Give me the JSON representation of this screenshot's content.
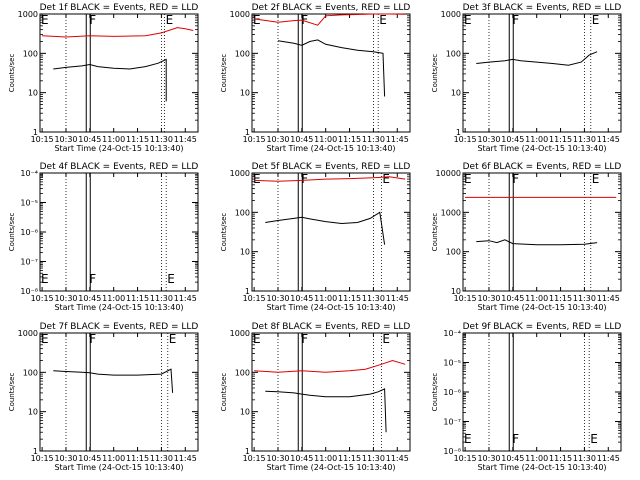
{
  "chart_data": [
    {
      "type": "line",
      "title": "Det 1f BLACK = Events, RED = LLD",
      "ylabel": "Counts/sec",
      "xlabel": "Start Time (24-Oct-15 10:13:40)",
      "x_tick_labels": [
        "10:15",
        "10:30",
        "10:45",
        "11:00",
        "11:15",
        "11:30",
        "11:45"
      ],
      "y_scale": "log",
      "ylim": [
        1,
        1000
      ],
      "y_tick_labels": [
        "1",
        "10",
        "100",
        "1000"
      ],
      "markers": {
        "F": "10:44",
        "E": "11:32"
      },
      "series": [
        {
          "color": "#000000",
          "points": [
            [
              "10:22",
              40
            ],
            [
              "10:30",
              44
            ],
            [
              "10:40",
              48
            ],
            [
              "10:45",
              52
            ],
            [
              "10:50",
              46
            ],
            [
              "11:00",
              42
            ],
            [
              "11:10",
              40
            ],
            [
              "11:20",
              46
            ],
            [
              "11:28",
              56
            ],
            [
              "11:33",
              70
            ],
            [
              "11:33",
              6
            ]
          ]
        },
        {
          "color": "#e00000",
          "points": [
            [
              "10:15",
              280
            ],
            [
              "10:30",
              260
            ],
            [
              "10:45",
              280
            ],
            [
              "11:00",
              270
            ],
            [
              "11:20",
              280
            ],
            [
              "11:30",
              330
            ],
            [
              "11:40",
              450
            ],
            [
              "11:45",
              420
            ],
            [
              "11:50",
              380
            ]
          ]
        }
      ]
    },
    {
      "type": "line",
      "title": "Det 2f BLACK = Events, RED = LLD",
      "ylabel": "Counts/sec",
      "xlabel": "Start Time (24-Oct-15 10:13:40)",
      "x_tick_labels": [
        "10:15",
        "10:30",
        "10:45",
        "11:00",
        "11:15",
        "11:30",
        "11:45"
      ],
      "y_scale": "log",
      "ylim": [
        1,
        1000
      ],
      "y_tick_labels": [
        "1",
        "10",
        "100",
        "1000"
      ],
      "markers": {
        "F": "10:44",
        "E": "11:33"
      },
      "series": [
        {
          "color": "#000000",
          "points": [
            [
              "10:30",
              210
            ],
            [
              "10:40",
              180
            ],
            [
              "10:45",
              160
            ],
            [
              "10:50",
              200
            ],
            [
              "10:55",
              220
            ],
            [
              "11:00",
              170
            ],
            [
              "11:10",
              140
            ],
            [
              "11:20",
              120
            ],
            [
              "11:30",
              110
            ],
            [
              "11:36",
              100
            ],
            [
              "11:37",
              8
            ]
          ]
        },
        {
          "color": "#e00000",
          "points": [
            [
              "10:15",
              750
            ],
            [
              "10:30",
              620
            ],
            [
              "10:40",
              680
            ],
            [
              "10:45",
              700
            ],
            [
              "10:55",
              520
            ],
            [
              "11:00",
              900
            ],
            [
              "11:10",
              950
            ],
            [
              "11:20",
              970
            ],
            [
              "11:30",
              1000
            ],
            [
              "11:40",
              1000
            ],
            [
              "11:50",
              980
            ]
          ]
        }
      ]
    },
    {
      "type": "line",
      "title": "Det 3f BLACK = Events, RED = LLD",
      "ylabel": "Counts/sec",
      "xlabel": "Start Time (24-Oct-15 10:13:40)",
      "x_tick_labels": [
        "10:15",
        "10:30",
        "10:45",
        "11:00",
        "11:15",
        "11:30",
        "11:45"
      ],
      "y_scale": "log",
      "ylim": [
        1,
        1000
      ],
      "y_tick_labels": [
        "1",
        "10",
        "100",
        "1000"
      ],
      "markers": {
        "F": "10:44",
        "E": "11:34"
      },
      "series": [
        {
          "color": "#000000",
          "points": [
            [
              "10:22",
              55
            ],
            [
              "10:30",
              60
            ],
            [
              "10:40",
              65
            ],
            [
              "10:45",
              70
            ],
            [
              "10:50",
              65
            ],
            [
              "11:00",
              60
            ],
            [
              "11:10",
              55
            ],
            [
              "11:20",
              50
            ],
            [
              "11:28",
              60
            ],
            [
              "11:33",
              90
            ],
            [
              "11:38",
              110
            ]
          ]
        }
      ]
    },
    {
      "type": "line",
      "title": "Det 4f BLACK = Events, RED = LLD",
      "ylabel": "Counts/sec",
      "xlabel": "Start Time (24-Oct-15 10:13:40)",
      "x_tick_labels": [
        "10:15",
        "10:30",
        "10:45",
        "11:00",
        "11:15",
        "11:30",
        "11:45"
      ],
      "y_scale": "log",
      "ylim": [
        1e-08,
        0.0001
      ],
      "y_tick_labels": [
        "10⁻⁸",
        "10⁻⁷",
        "10⁻⁶",
        "10⁻⁵",
        "10⁻⁴"
      ],
      "markers": {
        "F": "10:44",
        "E": "11:33"
      },
      "series": []
    },
    {
      "type": "line",
      "title": "Det 5f BLACK = Events, RED = LLD",
      "ylabel": "Counts/sec",
      "xlabel": "Start Time (24-Oct-15 10:13:40)",
      "x_tick_labels": [
        "10:15",
        "10:30",
        "10:45",
        "11:00",
        "11:15",
        "11:30",
        "11:45"
      ],
      "y_scale": "log",
      "ylim": [
        1,
        1000
      ],
      "y_tick_labels": [
        "1",
        "10",
        "100",
        "1000"
      ],
      "markers": {
        "F": "10:44",
        "E": "11:35"
      },
      "series": [
        {
          "color": "#000000",
          "points": [
            [
              "10:22",
              55
            ],
            [
              "10:30",
              62
            ],
            [
              "10:40",
              70
            ],
            [
              "10:45",
              75
            ],
            [
              "10:50",
              68
            ],
            [
              "11:00",
              58
            ],
            [
              "11:10",
              52
            ],
            [
              "11:20",
              55
            ],
            [
              "11:28",
              70
            ],
            [
              "11:34",
              100
            ],
            [
              "11:37",
              15
            ]
          ]
        },
        {
          "color": "#e00000",
          "points": [
            [
              "10:15",
              650
            ],
            [
              "10:30",
              620
            ],
            [
              "10:45",
              650
            ],
            [
              "11:00",
              700
            ],
            [
              "11:15",
              720
            ],
            [
              "11:30",
              760
            ],
            [
              "11:40",
              800
            ],
            [
              "11:50",
              700
            ]
          ]
        }
      ]
    },
    {
      "type": "line",
      "title": "Det 6f BLACK = Events, RED = LLD",
      "ylabel": "Counts/sec",
      "xlabel": "Start Time (24-Oct-15 10:13:40)",
      "x_tick_labels": [
        "10:15",
        "10:30",
        "10:45",
        "11:00",
        "11:15",
        "11:30",
        "11:45"
      ],
      "y_scale": "log",
      "ylim": [
        10,
        10000
      ],
      "y_tick_labels": [
        "10",
        "100",
        "1000",
        "10000"
      ],
      "markers": {
        "F": "10:44",
        "E": "11:34"
      },
      "series": [
        {
          "color": "#000000",
          "points": [
            [
              "10:22",
              180
            ],
            [
              "10:30",
              190
            ],
            [
              "10:35",
              170
            ],
            [
              "10:40",
              200
            ],
            [
              "10:45",
              160
            ],
            [
              "11:00",
              150
            ],
            [
              "11:15",
              150
            ],
            [
              "11:30",
              155
            ],
            [
              "11:38",
              170
            ]
          ]
        },
        {
          "color": "#e00000",
          "points": [
            [
              "10:15",
              2400
            ],
            [
              "10:30",
              2400
            ],
            [
              "10:45",
              2400
            ],
            [
              "11:00",
              2400
            ],
            [
              "11:15",
              2400
            ],
            [
              "11:30",
              2400
            ],
            [
              "11:50",
              2400
            ]
          ]
        }
      ]
    },
    {
      "type": "line",
      "title": "Det 7f BLACK = Events, RED = LLD",
      "ylabel": "Counts/sec",
      "xlabel": "Start Time (24-Oct-15 10:13:40)",
      "x_tick_labels": [
        "10:15",
        "10:30",
        "10:45",
        "11:00",
        "11:15",
        "11:30",
        "11:45"
      ],
      "y_scale": "log",
      "ylim": [
        1,
        1000
      ],
      "y_tick_labels": [
        "1",
        "10",
        "100",
        "1000"
      ],
      "markers": {
        "F": "10:44",
        "E": "11:34"
      },
      "series": [
        {
          "color": "#000000",
          "points": [
            [
              "10:22",
              110
            ],
            [
              "10:30",
              105
            ],
            [
              "10:40",
              100
            ],
            [
              "10:45",
              98
            ],
            [
              "10:50",
              90
            ],
            [
              "11:00",
              85
            ],
            [
              "11:15",
              85
            ],
            [
              "11:30",
              90
            ],
            [
              "11:36",
              120
            ],
            [
              "11:37",
              30
            ]
          ]
        }
      ]
    },
    {
      "type": "line",
      "title": "Det 8f BLACK = Events, RED = LLD",
      "ylabel": "Counts/sec",
      "xlabel": "Start Time (24-Oct-15 10:13:40)",
      "x_tick_labels": [
        "10:15",
        "10:30",
        "10:45",
        "11:00",
        "11:15",
        "11:30",
        "11:45"
      ],
      "y_scale": "log",
      "ylim": [
        1,
        1000
      ],
      "y_tick_labels": [
        "1",
        "10",
        "100",
        "1000"
      ],
      "markers": {
        "F": "10:44",
        "E": "11:35"
      },
      "series": [
        {
          "color": "#000000",
          "points": [
            [
              "10:22",
              33
            ],
            [
              "10:30",
              32
            ],
            [
              "10:40",
              30
            ],
            [
              "10:45",
              28
            ],
            [
              "10:50",
              26
            ],
            [
              "11:00",
              24
            ],
            [
              "11:15",
              24
            ],
            [
              "11:28",
              28
            ],
            [
              "11:33",
              32
            ],
            [
              "11:37",
              38
            ],
            [
              "11:38",
              3
            ]
          ]
        },
        {
          "color": "#e00000",
          "points": [
            [
              "10:15",
              110
            ],
            [
              "10:30",
              100
            ],
            [
              "10:45",
              110
            ],
            [
              "11:00",
              100
            ],
            [
              "11:15",
              110
            ],
            [
              "11:25",
              120
            ],
            [
              "11:35",
              160
            ],
            [
              "11:42",
              200
            ],
            [
              "11:50",
              160
            ]
          ]
        }
      ]
    },
    {
      "type": "line",
      "title": "Det 9f BLACK = Events, RED = LLD",
      "ylabel": "Counts/sec",
      "xlabel": "Start Time (24-Oct-15 10:13:40)",
      "x_tick_labels": [
        "10:15",
        "10:30",
        "10:45",
        "11:00",
        "11:15",
        "11:30",
        "11:45"
      ],
      "y_scale": "log",
      "ylim": [
        1e-08,
        0.0001
      ],
      "y_tick_labels": [
        "10⁻⁸",
        "10⁻⁷",
        "10⁻⁶",
        "10⁻⁵",
        "10⁻⁴"
      ],
      "markers": {
        "F": "10:44",
        "E": "11:33"
      },
      "series": []
    }
  ]
}
